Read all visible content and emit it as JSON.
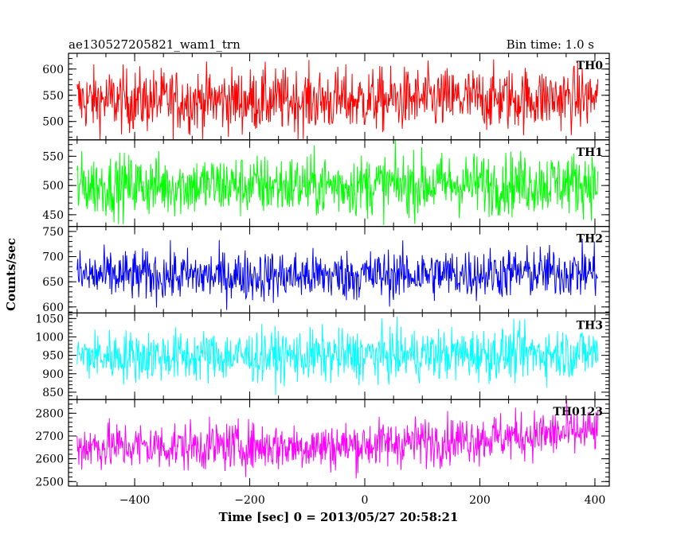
{
  "header": {
    "title": "ae130527205821_wam1_trn",
    "bin_time": "Bin time: 1.0 s"
  },
  "chart_data": {
    "type": "line",
    "shared_x": {
      "label": "Time [sec] 0 = 2013/05/27 20:58:21",
      "xlim": [
        -515,
        425
      ],
      "ticks": [
        -400,
        -200,
        0,
        200,
        400
      ],
      "tick_labels": [
        "−400",
        "−200",
        "0",
        "200",
        "400"
      ],
      "data_range": [
        -500,
        405
      ],
      "bin_time_sec": 1.0
    },
    "ylabel": "Counts/sec",
    "grid": false,
    "panels": [
      {
        "name": "TH0",
        "color": "#ff0000",
        "ylim": [
          465,
          630
        ],
        "yticks": [
          500,
          550,
          600
        ],
        "ytick_labels": [
          "500",
          "550",
          "600"
        ],
        "mean": 540,
        "typical_min": 480,
        "typical_max": 600,
        "extreme_min": 465,
        "extreme_max": 630,
        "trend_end": 545
      },
      {
        "name": "TH1",
        "color": "#00ff00",
        "ylim": [
          430,
          578
        ],
        "yticks": [
          450,
          500,
          550
        ],
        "ytick_labels": [
          "450",
          "500",
          "550"
        ],
        "mean": 500,
        "typical_min": 450,
        "typical_max": 555,
        "extreme_min": 432,
        "extreme_max": 578,
        "trend_end": 505
      },
      {
        "name": "TH2",
        "color": "#0000ff",
        "ylim": [
          588,
          760
        ],
        "yticks": [
          600,
          650,
          700,
          750
        ],
        "ytick_labels": [
          "600",
          "650",
          "700",
          "750"
        ],
        "mean": 662,
        "typical_min": 615,
        "typical_max": 715,
        "extreme_min": 590,
        "extreme_max": 760,
        "trend_end": 670
      },
      {
        "name": "TH3",
        "color": "#00ffff",
        "ylim": [
          830,
          1065
        ],
        "yticks": [
          850,
          900,
          950,
          1000,
          1050
        ],
        "ytick_labels": [
          "850",
          "900",
          "950",
          "1000",
          "1050"
        ],
        "mean": 948,
        "typical_min": 880,
        "typical_max": 1020,
        "extreme_min": 838,
        "extreme_max": 1062,
        "trend_end": 958
      },
      {
        "name": "TH0123",
        "color": "#ff00ff",
        "ylim": [
          2480,
          2860
        ],
        "yticks": [
          2500,
          2600,
          2700,
          2800
        ],
        "ytick_labels": [
          "2500",
          "2600",
          "2700",
          "2800"
        ],
        "mean": 2655,
        "typical_min": 2560,
        "typical_max": 2770,
        "extreme_min": 2490,
        "extreme_max": 2860,
        "trend_end": 2720
      }
    ]
  }
}
